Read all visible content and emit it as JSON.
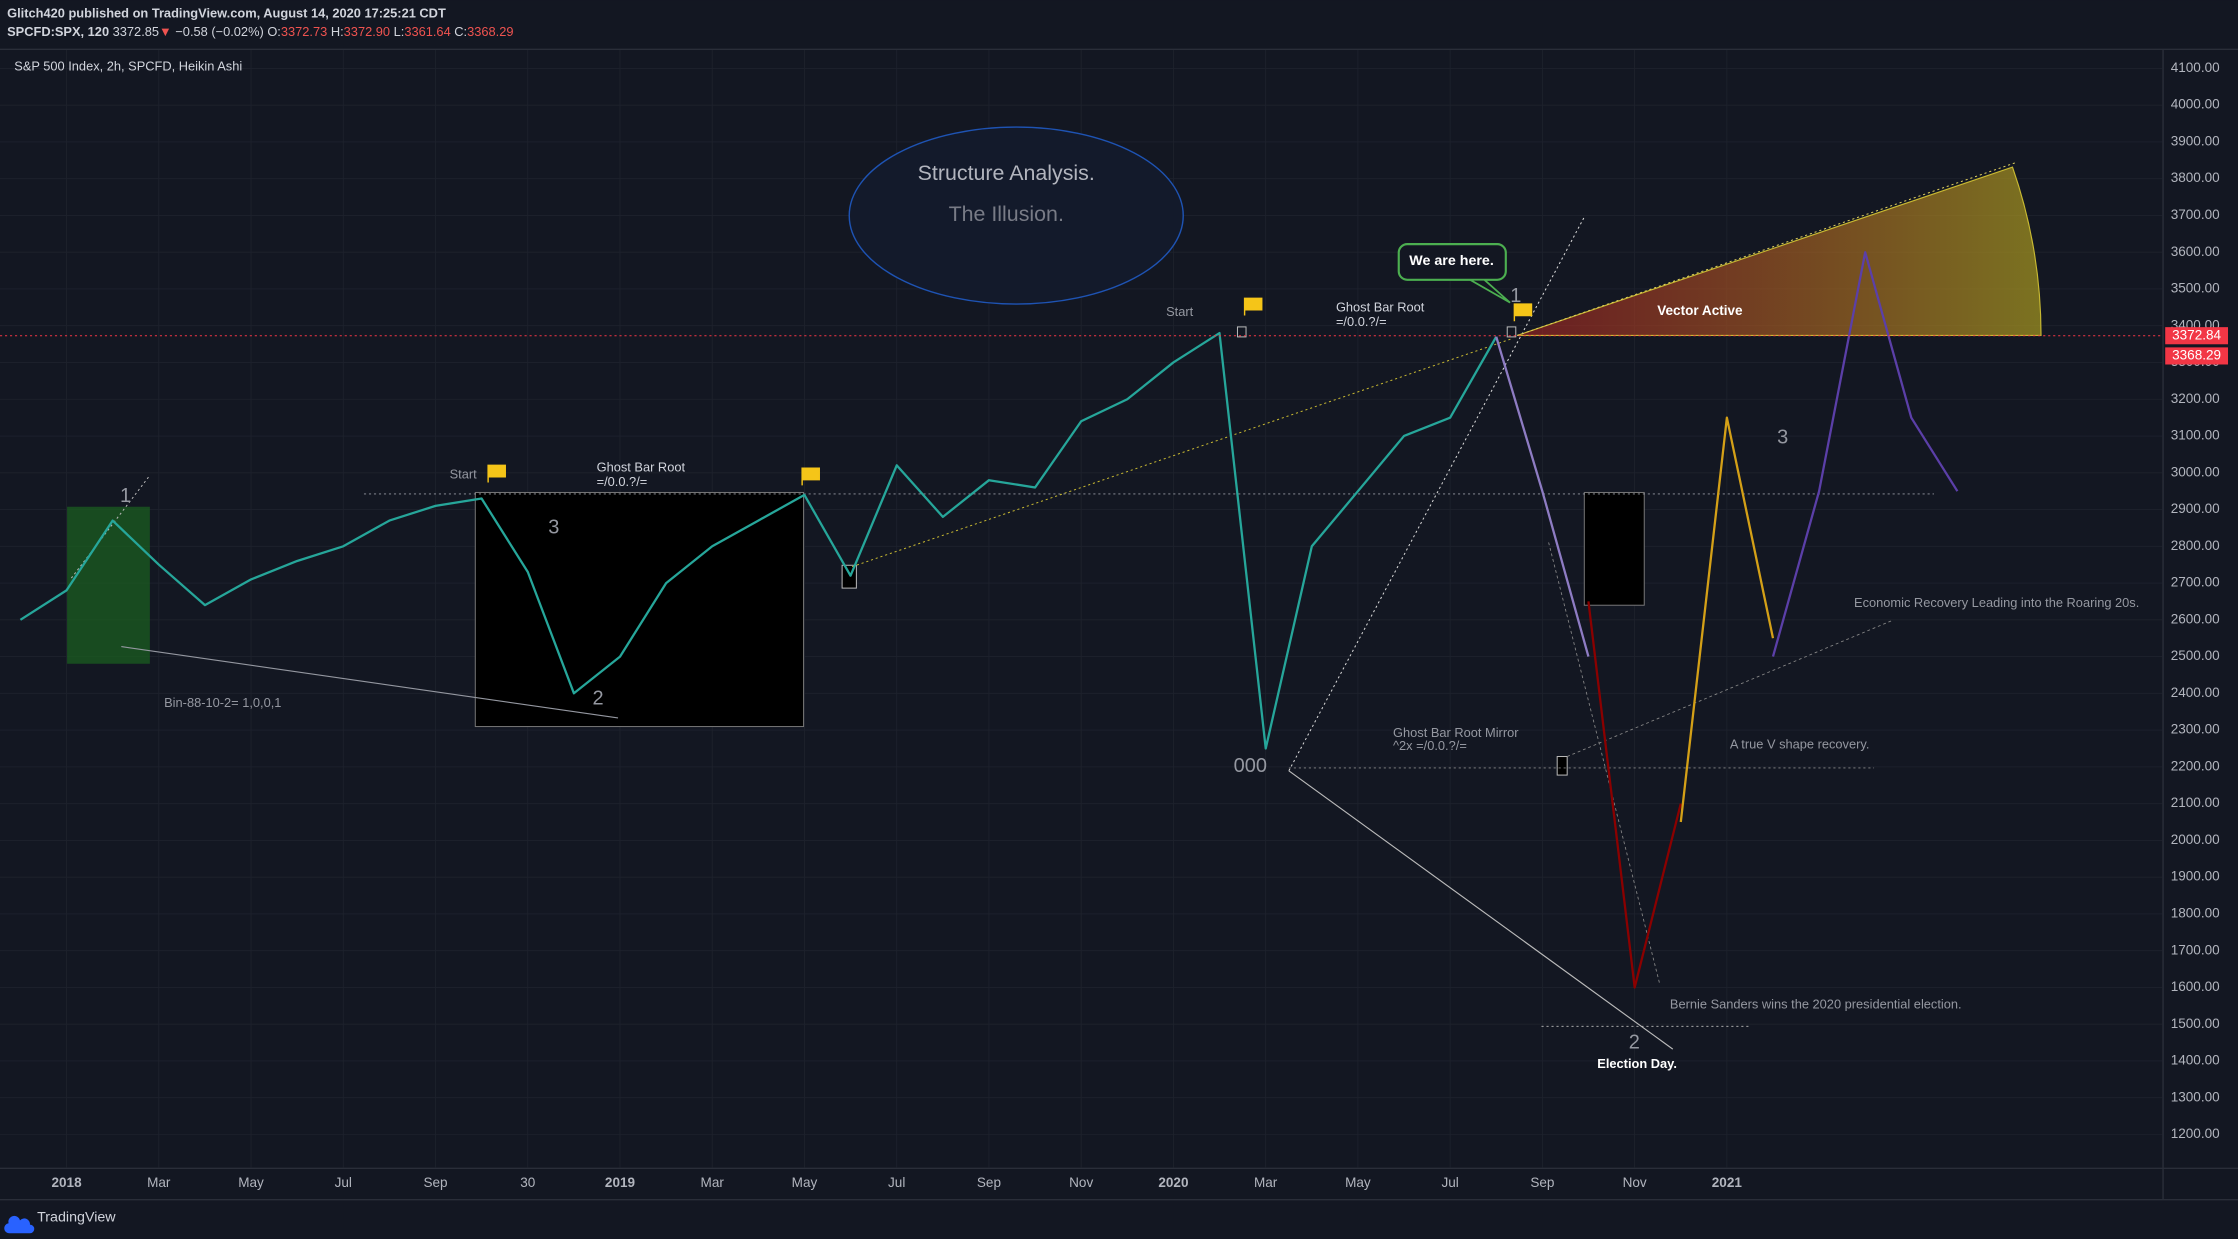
{
  "header": {
    "publisher": "Glitch420 published on TradingView.com, August 14, 2020 17:25:21 CDT",
    "symbol": "SPCFD:SPX, 120",
    "price": "3372.85",
    "change": "−0.58 (−0.02%)",
    "open_key": "O:",
    "open": "3372.73",
    "high_key": "H:",
    "high": "3372.90",
    "low_key": "L:",
    "low": "3361.64",
    "close_key": "C:",
    "close": "3368.29"
  },
  "footer": {
    "brand": "TradingView"
  },
  "annotations": [
    "Structure Analysis.",
    "The Illusion.",
    "We are here.",
    "Start",
    "Start",
    "Ghost Bar Root",
    "=/0.0.?/=",
    "Ghost Bar Root",
    "=/0.0.?/=",
    "Vector Active",
    "1",
    "3",
    "2",
    "000",
    "1",
    "3",
    "2",
    "Bin-88-10-2= 1,0,0,1",
    "Ghost Bar Root Mirror",
    "^2x =/0.0.?/=",
    "A true V shape recovery.",
    "Economic Recovery Leading into the Roaring 20s.",
    "Bernie Sanders wins the 2020 presidential election.",
    "Election Day."
  ],
  "chart_data": {
    "type": "line",
    "title": "S&P 500 Index, 2h, SPCFD, Heikin Ashi",
    "xlim": [
      "2017-11",
      "2021-11"
    ],
    "xticks": [
      {
        "value": "2018-01",
        "label": "2018"
      },
      {
        "value": "2018-03",
        "label": "Mar"
      },
      {
        "value": "2018-05",
        "label": "May"
      },
      {
        "value": "2018-07",
        "label": "Jul"
      },
      {
        "value": "2018-09",
        "label": "Sep"
      },
      {
        "value": "2018-11",
        "label": "30"
      },
      {
        "value": "2019-01",
        "label": "2019"
      },
      {
        "value": "2019-03",
        "label": "Mar"
      },
      {
        "value": "2019-05",
        "label": "May"
      },
      {
        "value": "2019-07",
        "label": "Jul"
      },
      {
        "value": "2019-09",
        "label": "Sep"
      },
      {
        "value": "2019-11",
        "label": "Nov"
      },
      {
        "value": "2020-01",
        "label": "2020"
      },
      {
        "value": "2020-03",
        "label": "Mar"
      },
      {
        "value": "2020-05",
        "label": "May"
      },
      {
        "value": "2020-07",
        "label": "Jul"
      },
      {
        "value": "2020-09",
        "label": "Sep"
      },
      {
        "value": "2020-11",
        "label": "Nov"
      },
      {
        "value": "2021-01",
        "label": "2021"
      }
    ],
    "ylim": [
      1110,
      4150
    ],
    "yticks": [
      {
        "value": 1200,
        "label": "1200.00"
      },
      {
        "value": 1300,
        "label": "1300.00"
      },
      {
        "value": 1400,
        "label": "1400.00"
      },
      {
        "value": 1500,
        "label": "1500.00"
      },
      {
        "value": 1600,
        "label": "1600.00"
      },
      {
        "value": 1700,
        "label": "1700.00"
      },
      {
        "value": 1800,
        "label": "1800.00"
      },
      {
        "value": 1900,
        "label": "1900.00"
      },
      {
        "value": 2000,
        "label": "2000.00"
      },
      {
        "value": 2100,
        "label": "2100.00"
      },
      {
        "value": 2200,
        "label": "2200.00"
      },
      {
        "value": 2300,
        "label": "2300.00"
      },
      {
        "value": 2400,
        "label": "2400.00"
      },
      {
        "value": 2500,
        "label": "2500.00"
      },
      {
        "value": 2600,
        "label": "2600.00"
      },
      {
        "value": 2700,
        "label": "2700.00"
      },
      {
        "value": 2800,
        "label": "2800.00"
      },
      {
        "value": 2900,
        "label": "2900.00"
      },
      {
        "value": 3000,
        "label": "3000.00"
      },
      {
        "value": 3100,
        "label": "3100.00"
      },
      {
        "value": 3200,
        "label": "3200.00"
      },
      {
        "value": 3300,
        "label": "3300.00"
      },
      {
        "value": 3400,
        "label": "3400.00"
      },
      {
        "value": 3500,
        "label": "3500.00"
      },
      {
        "value": 3600,
        "label": "3600.00"
      },
      {
        "value": 3700,
        "label": "3700.00"
      },
      {
        "value": 3800,
        "label": "3800.00"
      },
      {
        "value": 3900,
        "label": "3900.00"
      },
      {
        "value": 4000,
        "label": "4000.00"
      },
      {
        "value": 4100,
        "label": "4100.00"
      }
    ],
    "grid": true,
    "marked_price": 3372.84,
    "last_price": 3368.29,
    "price_badge_color": "#f23645",
    "series": [
      {
        "color": "#26a69a",
        "x": [
          "2017-12",
          "2018-01",
          "2018-02",
          "2018-03",
          "2018-04",
          "2018-05",
          "2018-06",
          "2018-07",
          "2018-08",
          "2018-09",
          "2018-10",
          "2018-11",
          "2018-12",
          "2019-01",
          "2019-02",
          "2019-03",
          "2019-04",
          "2019-05",
          "2019-06",
          "2019-07",
          "2019-08",
          "2019-09",
          "2019-10",
          "2019-11",
          "2019-12",
          "2020-01",
          "2020-02",
          "2020-03",
          "2020-04",
          "2020-05",
          "2020-06",
          "2020-07",
          "2020-08"
        ],
        "values": [
          2600,
          2680,
          2870,
          2750,
          2640,
          2710,
          2760,
          2800,
          2870,
          2910,
          2930,
          2730,
          2400,
          2500,
          2700,
          2800,
          2870,
          2940,
          2720,
          3020,
          2880,
          2980,
          2960,
          3140,
          3200,
          3300,
          3380,
          2250,
          2800,
          2950,
          3100,
          3150,
          3370
        ]
      },
      {
        "color": "#8e7cc3",
        "x": [
          "2020-08",
          "2020-09",
          "2020-10"
        ],
        "values": [
          3370,
          2950,
          2500
        ]
      },
      {
        "color": "#8b0000",
        "x": [
          "2020-10",
          "2020-11",
          "2020-12"
        ],
        "values": [
          2650,
          1600,
          2100
        ]
      },
      {
        "color": "#d4a017",
        "x": [
          "2020-12",
          "2021-01",
          "2021-02"
        ],
        "values": [
          2050,
          3150,
          2550
        ]
      },
      {
        "color": "#5b3fa8",
        "x": [
          "2021-02",
          "2021-03",
          "2021-04",
          "2021-05",
          "2021-06"
        ],
        "values": [
          2500,
          2950,
          3600,
          3150,
          2950
        ]
      }
    ]
  }
}
